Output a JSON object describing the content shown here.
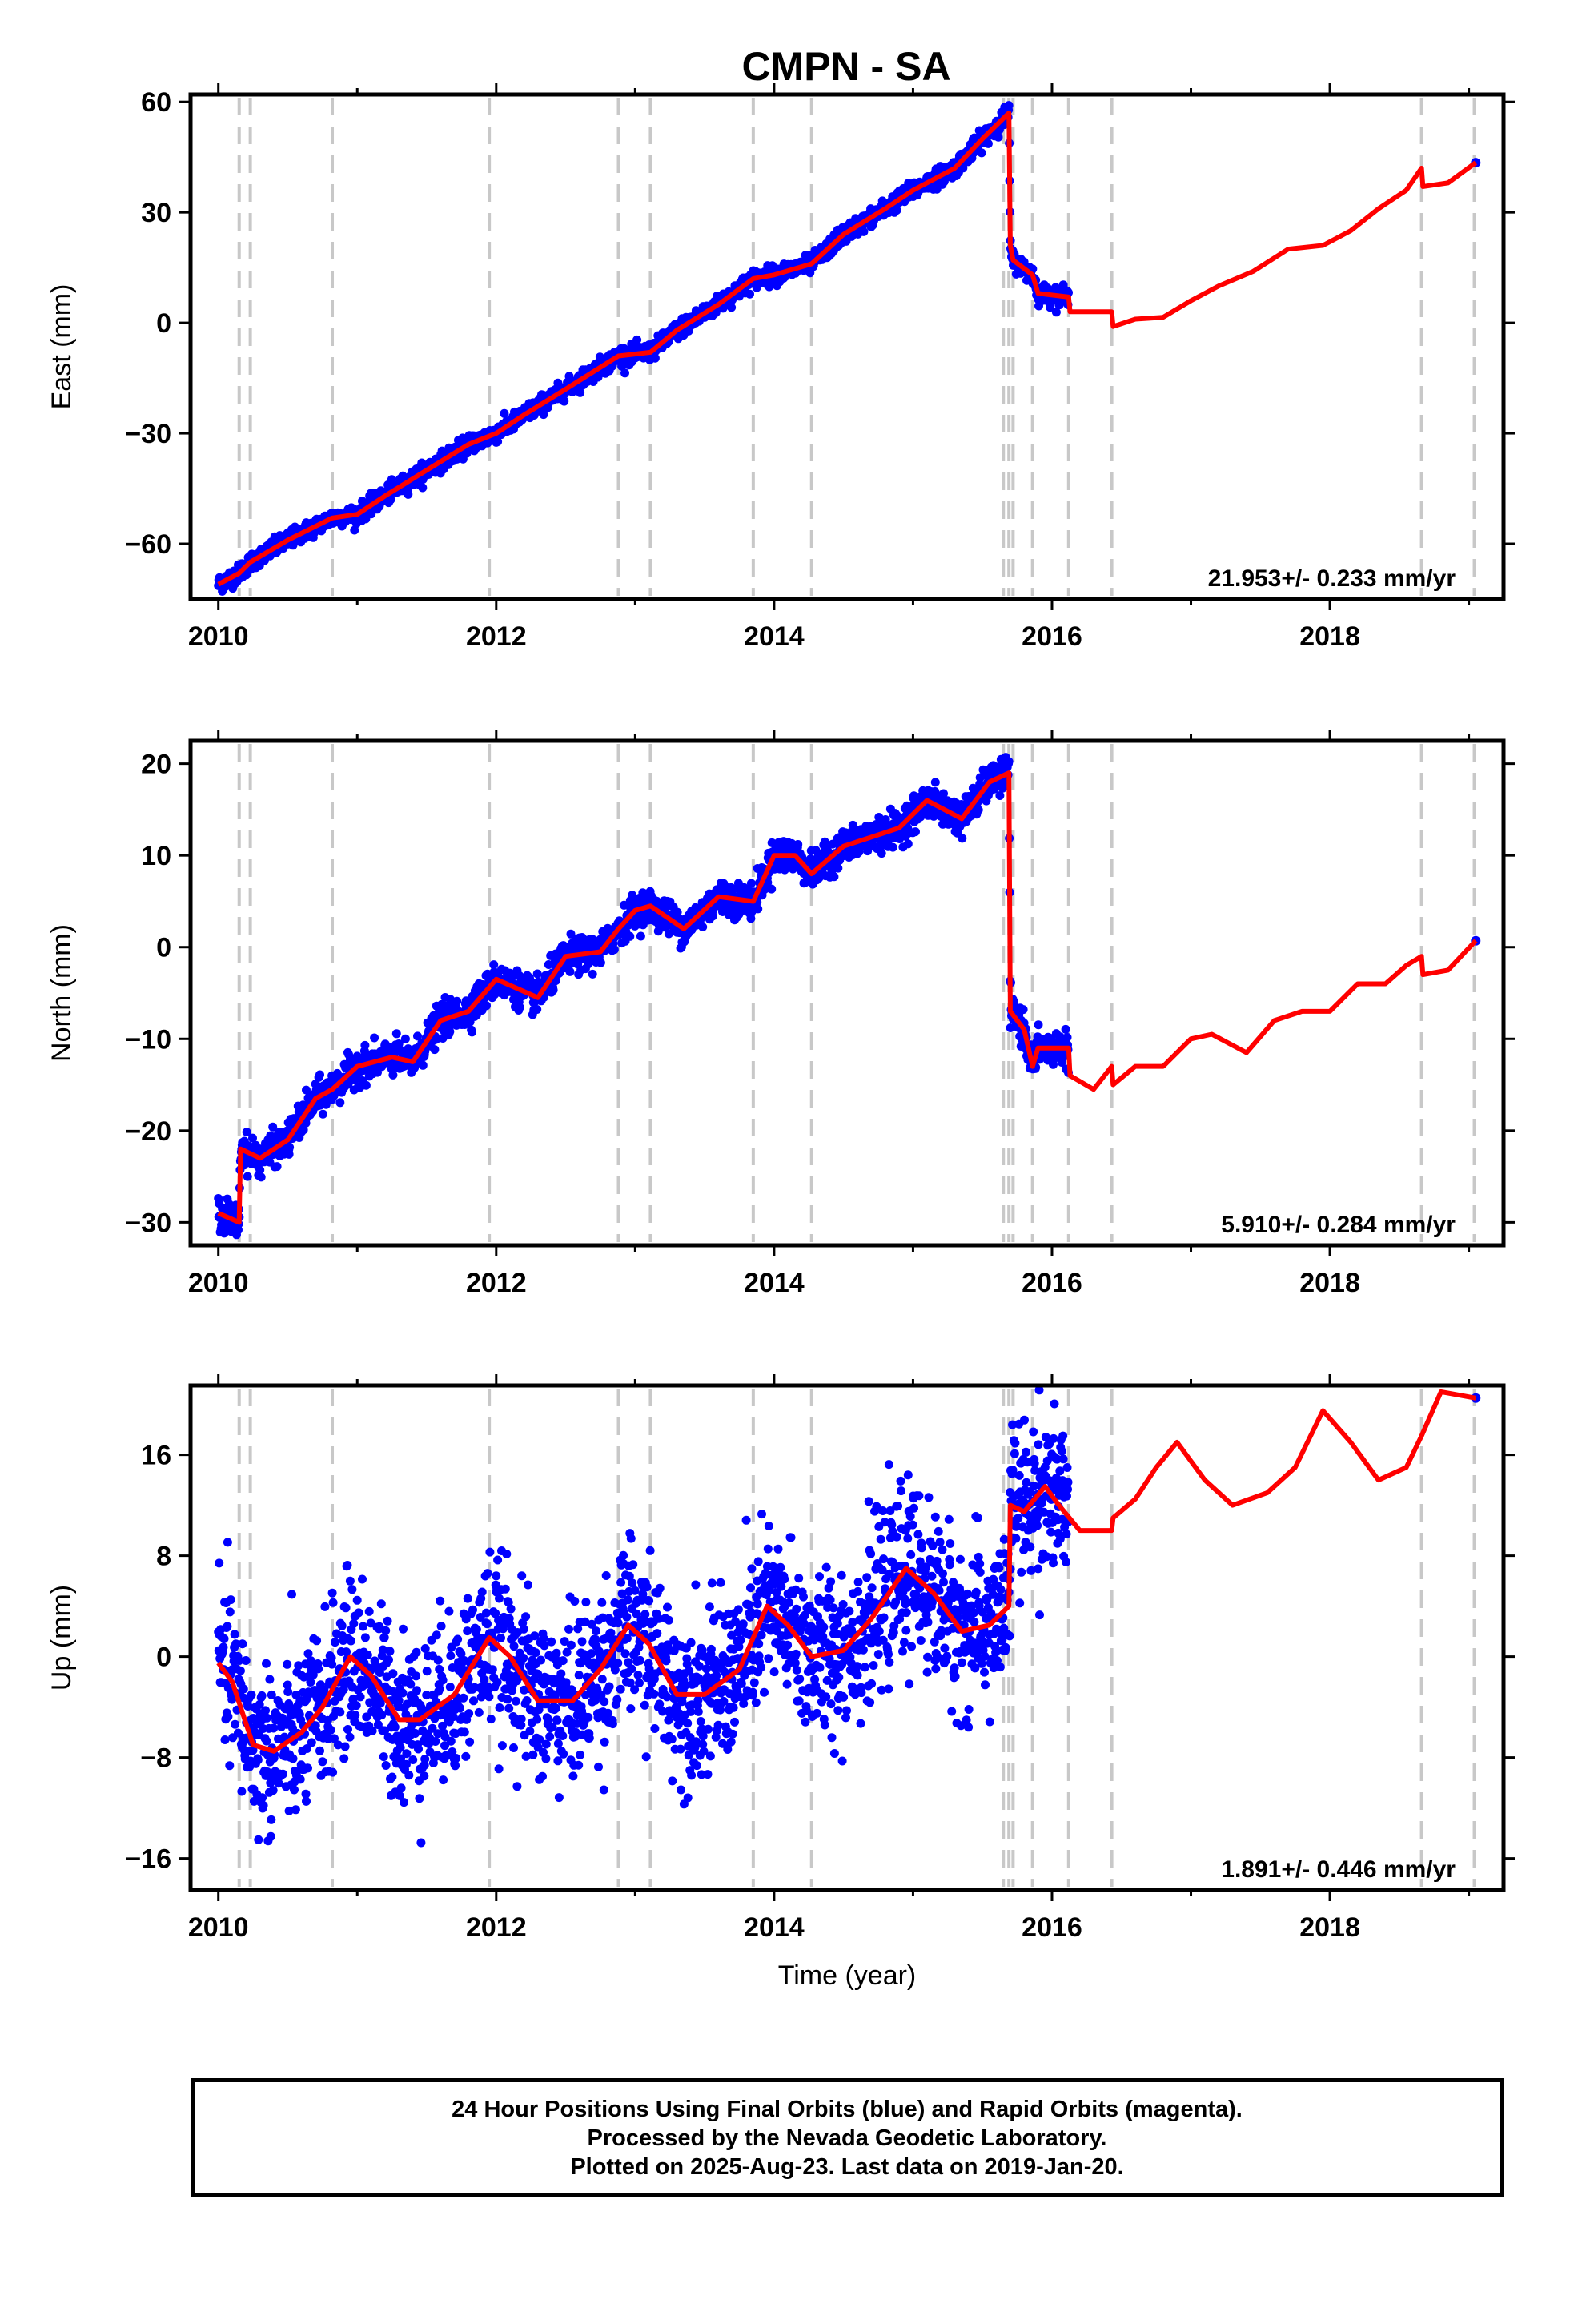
{
  "chart_data": {
    "title": "CMPN - SA",
    "footer": [
      "24 Hour Positions Using Final Orbits (blue) and Rapid Orbits (magenta).",
      "Processed by the Nevada Geodetic Laboratory.",
      "Plotted on 2025-Aug-23. Last data on 2019-Jan-20."
    ],
    "colors": {
      "observations": "#0000ff",
      "model": "#ff0000",
      "event_lines": "#c8c8c8"
    },
    "event_lines_years": [
      2010.15,
      2010.23,
      2010.82,
      2011.95,
      2012.88,
      2013.11,
      2013.85,
      2014.27,
      2015.65,
      2015.69,
      2015.72,
      2015.86,
      2016.12,
      2016.43,
      2018.66,
      2019.04
    ],
    "panels": [
      {
        "type": "scatter",
        "ylabel": "East (mm)",
        "xlabel": "",
        "xlim": [
          2009.8,
          2019.25
        ],
        "ylim": [
          -75,
          62
        ],
        "yticks": [
          -60,
          -30,
          0,
          30,
          60
        ],
        "xticks": [
          2010,
          2012,
          2014,
          2016,
          2018
        ],
        "rate": "21.953+/- 0.233 mm/yr",
        "data_span": [
          2010.0,
          2016.12
        ],
        "last_point": [
          2019.05,
          43.5
        ],
        "model": {
          "breaks": [
            [
              2015.69,
              2015.7
            ],
            [
              2016.43,
              2016.44
            ],
            [
              2018.66,
              2018.67
            ]
          ],
          "points": [
            [
              2010.0,
              -71
            ],
            [
              2010.15,
              -68
            ],
            [
              2010.23,
              -65
            ],
            [
              2010.5,
              -59
            ],
            [
              2010.82,
              -53
            ],
            [
              2011.0,
              -52
            ],
            [
              2011.2,
              -47
            ],
            [
              2011.5,
              -40
            ],
            [
              2011.8,
              -33
            ],
            [
              2012.0,
              -30
            ],
            [
              2012.2,
              -25
            ],
            [
              2012.5,
              -18
            ],
            [
              2012.88,
              -9
            ],
            [
              2013.11,
              -8
            ],
            [
              2013.3,
              -2
            ],
            [
              2013.6,
              5
            ],
            [
              2013.85,
              12
            ],
            [
              2014.0,
              13
            ],
            [
              2014.27,
              16
            ],
            [
              2014.5,
              24
            ],
            [
              2014.8,
              31
            ],
            [
              2015.0,
              36
            ],
            [
              2015.3,
              42
            ],
            [
              2015.5,
              50
            ],
            [
              2015.69,
              57
            ],
            [
              2015.7,
              21
            ],
            [
              2015.72,
              17
            ],
            [
              2015.86,
              13
            ],
            [
              2015.9,
              8
            ],
            [
              2016.12,
              7
            ],
            [
              2016.13,
              3
            ],
            [
              2016.43,
              3
            ],
            [
              2016.44,
              -1
            ],
            [
              2016.6,
              1
            ],
            [
              2016.8,
              1.5
            ],
            [
              2017.0,
              6
            ],
            [
              2017.2,
              10
            ],
            [
              2017.45,
              14
            ],
            [
              2017.7,
              20
            ],
            [
              2017.95,
              21
            ],
            [
              2018.15,
              25
            ],
            [
              2018.35,
              31
            ],
            [
              2018.55,
              36
            ],
            [
              2018.66,
              42
            ],
            [
              2018.67,
              37
            ],
            [
              2018.85,
              38
            ],
            [
              2019.05,
              43.5
            ]
          ]
        }
      },
      {
        "type": "scatter",
        "ylabel": "North (mm)",
        "xlabel": "",
        "xlim": [
          2009.8,
          2019.25
        ],
        "ylim": [
          -32.5,
          22.5
        ],
        "yticks": [
          -30,
          -20,
          -10,
          0,
          10,
          20
        ],
        "xticks": [
          2010,
          2012,
          2014,
          2016,
          2018
        ],
        "rate": "5.910+/- 0.284 mm/yr",
        "data_span": [
          2010.0,
          2016.12
        ],
        "last_point": [
          2019.05,
          0.7
        ],
        "model": {
          "breaks": [
            [
              2010.15,
              2010.16
            ],
            [
              2015.69,
              2015.7
            ],
            [
              2016.43,
              2016.44
            ],
            [
              2018.66,
              2018.67
            ]
          ],
          "points": [
            [
              2010.0,
              -29
            ],
            [
              2010.15,
              -30
            ],
            [
              2010.16,
              -22
            ],
            [
              2010.3,
              -23
            ],
            [
              2010.5,
              -21
            ],
            [
              2010.7,
              -16.5
            ],
            [
              2010.82,
              -15.5
            ],
            [
              2011.0,
              -13
            ],
            [
              2011.25,
              -12
            ],
            [
              2011.4,
              -12.5
            ],
            [
              2011.6,
              -8
            ],
            [
              2011.8,
              -7
            ],
            [
              2012.0,
              -3.5
            ],
            [
              2012.3,
              -5.5
            ],
            [
              2012.5,
              -1
            ],
            [
              2012.75,
              -0.5
            ],
            [
              2012.88,
              2
            ],
            [
              2013.0,
              4
            ],
            [
              2013.11,
              4.5
            ],
            [
              2013.35,
              2
            ],
            [
              2013.6,
              5.5
            ],
            [
              2013.85,
              5
            ],
            [
              2014.0,
              10
            ],
            [
              2014.15,
              10
            ],
            [
              2014.27,
              8
            ],
            [
              2014.5,
              11
            ],
            [
              2014.7,
              12
            ],
            [
              2014.9,
              13
            ],
            [
              2015.1,
              16
            ],
            [
              2015.35,
              14
            ],
            [
              2015.55,
              18
            ],
            [
              2015.69,
              19
            ],
            [
              2015.7,
              -7
            ],
            [
              2015.8,
              -9
            ],
            [
              2015.86,
              -13
            ],
            [
              2015.9,
              -11
            ],
            [
              2016.12,
              -11
            ],
            [
              2016.13,
              -14
            ],
            [
              2016.3,
              -15.5
            ],
            [
              2016.43,
              -13
            ],
            [
              2016.44,
              -15
            ],
            [
              2016.6,
              -13
            ],
            [
              2016.8,
              -13
            ],
            [
              2017.0,
              -10
            ],
            [
              2017.15,
              -9.5
            ],
            [
              2017.4,
              -11.5
            ],
            [
              2017.6,
              -8
            ],
            [
              2017.8,
              -7
            ],
            [
              2018.0,
              -7
            ],
            [
              2018.2,
              -4
            ],
            [
              2018.4,
              -4
            ],
            [
              2018.55,
              -2
            ],
            [
              2018.66,
              -1
            ],
            [
              2018.67,
              -3
            ],
            [
              2018.85,
              -2.5
            ],
            [
              2019.05,
              0.7
            ]
          ]
        }
      },
      {
        "type": "scatter",
        "ylabel": "Up (mm)",
        "xlabel": "Time (year)",
        "xlim": [
          2009.8,
          2019.25
        ],
        "ylim": [
          -18.5,
          21.5
        ],
        "yticks": [
          -16,
          -8,
          0,
          8,
          16
        ],
        "xticks": [
          2010,
          2012,
          2014,
          2016,
          2018
        ],
        "rate": "1.891+/- 0.446 mm/yr",
        "data_span": [
          2010.0,
          2016.12
        ],
        "last_point": [
          2019.05,
          20.5
        ],
        "model": {
          "breaks": [
            [
              2015.69,
              2015.7
            ],
            [
              2016.43,
              2016.44
            ]
          ],
          "points": [
            [
              2010.0,
              -0.5
            ],
            [
              2010.1,
              -2
            ],
            [
              2010.25,
              -7
            ],
            [
              2010.4,
              -7.5
            ],
            [
              2010.6,
              -6
            ],
            [
              2010.75,
              -4
            ],
            [
              2010.95,
              0
            ],
            [
              2011.1,
              -1.5
            ],
            [
              2011.3,
              -5
            ],
            [
              2011.45,
              -5
            ],
            [
              2011.7,
              -3
            ],
            [
              2011.95,
              1.5
            ],
            [
              2012.1,
              0
            ],
            [
              2012.3,
              -3.5
            ],
            [
              2012.55,
              -3.5
            ],
            [
              2012.75,
              -1
            ],
            [
              2012.95,
              2.5
            ],
            [
              2013.1,
              1
            ],
            [
              2013.3,
              -3
            ],
            [
              2013.5,
              -3
            ],
            [
              2013.75,
              -1
            ],
            [
              2013.95,
              4
            ],
            [
              2014.1,
              2.5
            ],
            [
              2014.27,
              0
            ],
            [
              2014.5,
              0.5
            ],
            [
              2014.7,
              3
            ],
            [
              2014.95,
              7
            ],
            [
              2015.15,
              5
            ],
            [
              2015.35,
              2
            ],
            [
              2015.55,
              2.5
            ],
            [
              2015.69,
              4
            ],
            [
              2015.7,
              12
            ],
            [
              2015.8,
              11.5
            ],
            [
              2015.95,
              13.5
            ],
            [
              2016.05,
              12
            ],
            [
              2016.2,
              10
            ],
            [
              2016.43,
              10
            ],
            [
              2016.44,
              11
            ],
            [
              2016.6,
              12.5
            ],
            [
              2016.75,
              15
            ],
            [
              2016.9,
              17
            ],
            [
              2017.1,
              14
            ],
            [
              2017.3,
              12
            ],
            [
              2017.55,
              13
            ],
            [
              2017.75,
              15
            ],
            [
              2017.95,
              19.5
            ],
            [
              2018.15,
              17
            ],
            [
              2018.35,
              14
            ],
            [
              2018.55,
              15
            ],
            [
              2018.66,
              17.5
            ],
            [
              2018.8,
              21
            ],
            [
              2019.05,
              20.5
            ]
          ]
        }
      }
    ]
  }
}
